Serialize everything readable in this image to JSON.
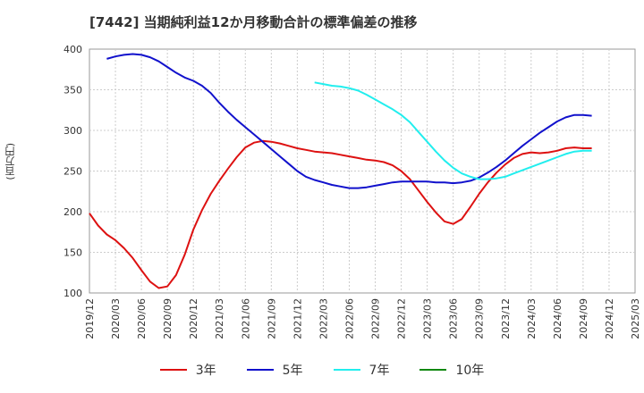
{
  "title": "[7442]  当期純利益12か月移動合計の標準偏差の推移",
  "chart_data": {
    "type": "line",
    "title": "[7442]  当期純利益12か月移動合計の標準偏差の推移",
    "ylabel": "(百万円)",
    "xlabel": "",
    "ylim": [
      100,
      400
    ],
    "yticks": [
      100,
      150,
      200,
      250,
      300,
      350,
      400
    ],
    "xticks": [
      "2019/12",
      "2020/03",
      "2020/06",
      "2020/09",
      "2020/12",
      "2021/03",
      "2021/06",
      "2021/09",
      "2021/12",
      "2022/03",
      "2022/06",
      "2022/09",
      "2022/12",
      "2023/03",
      "2023/06",
      "2023/09",
      "2023/12",
      "2024/03",
      "2024/06",
      "2024/09",
      "2024/12",
      "2025/03"
    ],
    "grid": true,
    "legend_position": "bottom",
    "x_start": "2019/12",
    "series": [
      {
        "name": "3年",
        "color": "#dd1111",
        "start": "2019/12",
        "values": [
          198,
          183,
          172,
          165,
          155,
          143,
          128,
          114,
          106,
          108,
          122,
          147,
          178,
          202,
          222,
          238,
          253,
          267,
          279,
          285,
          287,
          286,
          284,
          281,
          278,
          276,
          274,
          273,
          272,
          270,
          268,
          266,
          264,
          263,
          261,
          257,
          250,
          240,
          226,
          212,
          199,
          188,
          185,
          191,
          206,
          222,
          236,
          248,
          258,
          266,
          271,
          273,
          272,
          273,
          275,
          278,
          279,
          278,
          278
        ]
      },
      {
        "name": "5年",
        "color": "#1111cc",
        "start": "2020/02",
        "values": [
          388,
          391,
          393,
          394,
          393,
          390,
          385,
          378,
          371,
          365,
          361,
          355,
          346,
          334,
          323,
          313,
          304,
          295,
          286,
          277,
          268,
          259,
          250,
          243,
          239,
          236,
          233,
          231,
          229,
          229,
          230,
          232,
          234,
          236,
          237,
          237,
          237,
          237,
          236,
          236,
          235,
          236,
          238,
          242,
          248,
          255,
          263,
          272,
          281,
          289,
          297,
          304,
          311,
          316,
          319,
          319,
          318
        ]
      },
      {
        "name": "7年",
        "color": "#22eeee",
        "start": "2022/02",
        "values": [
          359,
          357,
          355,
          354,
          352,
          349,
          344,
          338,
          332,
          326,
          319,
          310,
          298,
          286,
          274,
          263,
          254,
          247,
          243,
          240,
          240,
          241,
          243,
          247,
          251,
          255,
          259,
          263,
          267,
          271,
          274,
          275,
          275
        ]
      },
      {
        "name": "10年",
        "color": "#118811",
        "start": "2019/12",
        "values": []
      }
    ]
  }
}
